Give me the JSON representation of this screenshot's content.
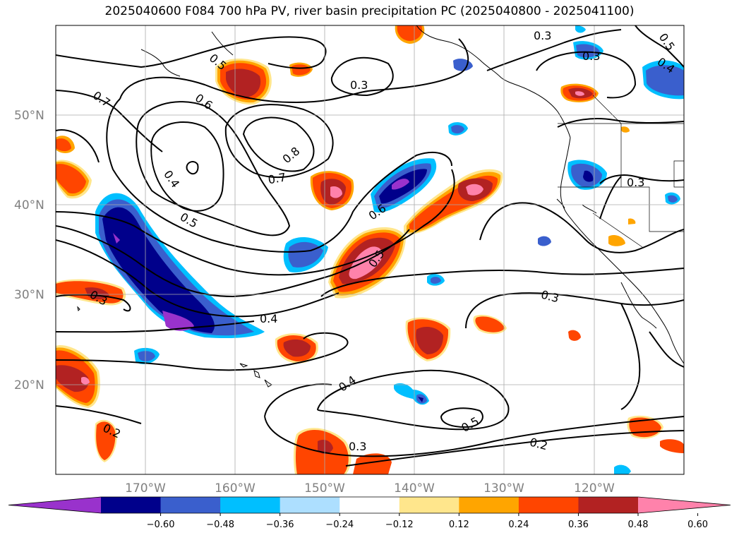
{
  "title": "2025040600 F084 700 hPa PV, river basin precipitation PC (2025040800 - 2025041100)",
  "map": {
    "lat_labels": [
      "50°N",
      "40°N",
      "30°N",
      "20°N"
    ],
    "lon_labels": [
      "170°W",
      "160°W",
      "150°W",
      "140°W",
      "130°W",
      "120°W"
    ]
  },
  "contour_labels": [
    "0.7",
    "0.6",
    "0.5",
    "0.4",
    "0.8",
    "0.7",
    "0.5",
    "0.6",
    "0.5",
    "0.3",
    "0.4",
    "0.3",
    "0.3",
    "0.3",
    "0.4",
    "0.5",
    "0.2",
    "0.3",
    "0.2",
    "0.5",
    "0.4",
    "0.3",
    "0.3"
  ],
  "colorbar": {
    "ticks": [
      "−0.60",
      "−0.48",
      "−0.36",
      "−0.24",
      "−0.12",
      "0.12",
      "0.24",
      "0.36",
      "0.48",
      "0.60"
    ],
    "colors": [
      "#9932CC",
      "#00008B",
      "#3A5FCD",
      "#00BFFF",
      "#ADDFFF",
      "#FFFFFF",
      "#FFE68C",
      "#FFA500",
      "#FF4500",
      "#B22222",
      "#FF82AB"
    ]
  }
}
